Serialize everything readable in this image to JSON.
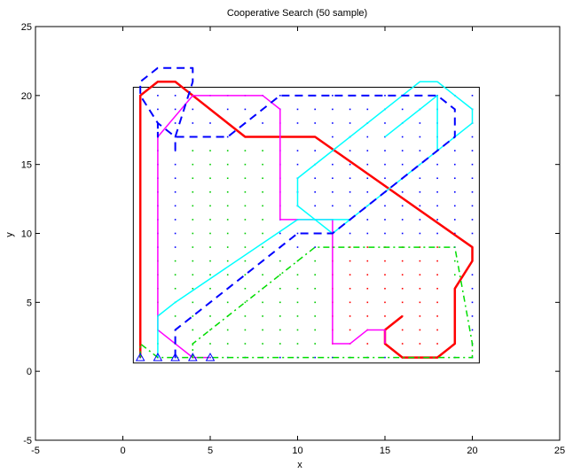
{
  "chart_data": {
    "type": "line",
    "title": "Cooperative Search (50 sample)",
    "xlabel": "x",
    "ylabel": "y",
    "xlim": [
      -5,
      25
    ],
    "ylim": [
      -5,
      25
    ],
    "xticks": [
      -5,
      0,
      5,
      10,
      15,
      20,
      25
    ],
    "yticks": [
      -5,
      0,
      5,
      10,
      15,
      20,
      25
    ],
    "grid": false,
    "boundary": {
      "x": [
        0.6,
        20.4
      ],
      "y": [
        0.6,
        20.6
      ],
      "color": "#000000"
    },
    "starts": {
      "x": [
        1,
        2,
        3,
        4,
        5
      ],
      "y": [
        1,
        1,
        1,
        1,
        1
      ],
      "color": "#0000ff",
      "marker": "triangle"
    },
    "dot_regions": [
      {
        "color": "#0000ff",
        "xmin": 1,
        "xmax": 20,
        "ymin": 1,
        "ymax": 20
      },
      {
        "color": "#00cc00",
        "xmin": 4,
        "xmax": 8,
        "ymin": 2,
        "ymax": 16
      },
      {
        "color": "#00cc00",
        "xmin": 2,
        "xmax": 19,
        "ymin": 2,
        "ymax": 8
      },
      {
        "color": "#ff0000",
        "xmin": 12,
        "xmax": 18,
        "ymin": 2,
        "ymax": 9
      }
    ],
    "series": [
      {
        "color": "#ff0000",
        "style": "solid",
        "width": 2.5,
        "x": [
          1,
          1,
          2,
          3,
          4,
          6,
          7,
          11,
          20,
          20,
          19,
          19,
          18,
          17,
          16,
          15,
          15,
          16
        ],
        "y": [
          1,
          20,
          21,
          21,
          20,
          18,
          17,
          17,
          9,
          8,
          6,
          2,
          1,
          1,
          1,
          2,
          3,
          4
        ]
      },
      {
        "color": "#ff00ff",
        "style": "solid",
        "width": 1.5,
        "x": [
          5,
          4,
          3,
          2,
          2,
          4,
          8,
          9,
          9,
          12,
          12,
          13,
          14,
          15,
          15
        ],
        "y": [
          1,
          1,
          2,
          3,
          17,
          20,
          20,
          19,
          11,
          11,
          2,
          2,
          3,
          3,
          2
        ]
      },
      {
        "color": "#00ffff",
        "style": "solid",
        "width": 1.5,
        "x": [
          2,
          2,
          3,
          10,
          12,
          13,
          19,
          20,
          20,
          18,
          17,
          16,
          10,
          10,
          11,
          12,
          17,
          18,
          18,
          15
        ],
        "y": [
          1,
          4,
          5,
          11,
          11,
          11,
          17,
          18,
          19,
          21,
          21,
          20,
          14,
          12,
          11,
          10,
          15,
          16,
          20,
          17
        ]
      },
      {
        "color": "#0000ff",
        "style": "dashed",
        "width": 2,
        "x": [
          3,
          3,
          4,
          10,
          11,
          12,
          19,
          19,
          18,
          9,
          8,
          6,
          5,
          4,
          3,
          2,
          2,
          2,
          1,
          1,
          2,
          4,
          4,
          3,
          3
        ],
        "y": [
          1,
          3,
          4,
          10,
          10,
          10,
          17,
          19,
          20,
          20,
          19,
          17,
          17,
          17,
          17,
          18,
          17,
          18,
          20,
          21,
          22,
          22,
          21,
          17,
          16
        ]
      },
      {
        "color": "#00dd00",
        "style": "dashdot",
        "width": 1.5,
        "x": [
          1,
          1,
          2,
          20,
          20,
          19,
          12,
          11,
          4,
          4
        ],
        "y": [
          1,
          2,
          1,
          1,
          2,
          9,
          9,
          9,
          2,
          1
        ]
      }
    ]
  }
}
